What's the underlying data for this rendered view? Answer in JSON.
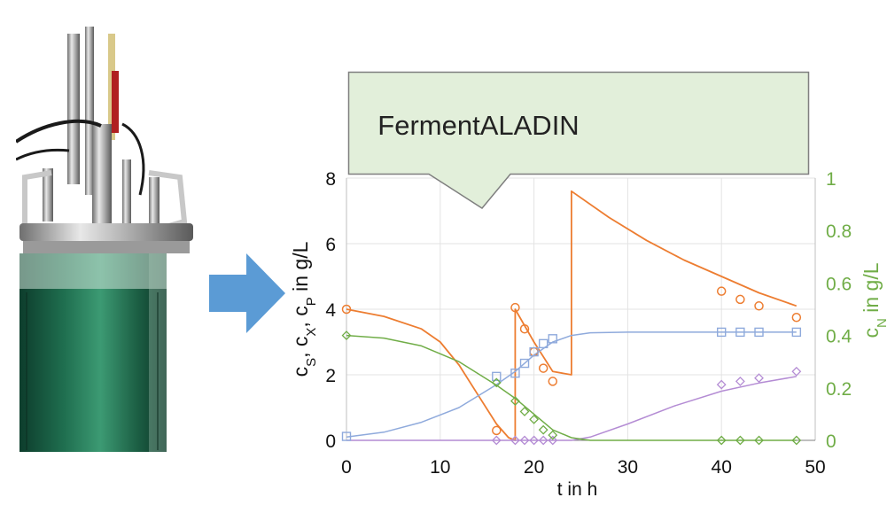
{
  "callout": {
    "title": "FermentALADIN"
  },
  "colors": {
    "substrate": "#ED7D31",
    "biomass": "#8FAADC",
    "product": "#B48CD4",
    "nitrogen": "#70AD47",
    "callout_fill": "#E2EFDA",
    "callout_border": "#7F7F7F",
    "arrow": "#5B9BD5",
    "right_axis": "#70AD47"
  },
  "chart_data": {
    "type": "line",
    "xlabel": "t in h",
    "ylabel_left": "cS, cX, cP in g/L",
    "ylabel_right": "cN in g/L",
    "xlim": [
      0,
      50
    ],
    "ylim_left": [
      0,
      8
    ],
    "ylim_right": [
      0,
      1
    ],
    "xticks": [
      0,
      10,
      20,
      30,
      40,
      50
    ],
    "yticks_left": [
      0,
      2,
      4,
      6,
      8
    ],
    "yticks_right": [
      0,
      0.2,
      0.4,
      0.6,
      0.8,
      1
    ],
    "grid": true,
    "series": [
      {
        "key": "S",
        "axis": "left",
        "marker": "circle",
        "model": [
          [
            0,
            4.0
          ],
          [
            4,
            3.78
          ],
          [
            8,
            3.4
          ],
          [
            10,
            3.0
          ],
          [
            12,
            2.3
          ],
          [
            14,
            1.4
          ],
          [
            16,
            0.5
          ],
          [
            17.3,
            0.08
          ],
          [
            18,
            0
          ],
          [
            18,
            4.0
          ],
          [
            20,
            3.0
          ],
          [
            22,
            2.1
          ],
          [
            24,
            2.0
          ],
          [
            24,
            7.6
          ],
          [
            28,
            6.8
          ],
          [
            32,
            6.1
          ],
          [
            36,
            5.5
          ],
          [
            40,
            5.0
          ],
          [
            44,
            4.5
          ],
          [
            48,
            4.1
          ]
        ],
        "observed": [
          [
            0,
            4.0
          ],
          [
            16,
            0.3
          ],
          [
            18,
            4.05
          ],
          [
            19,
            3.4
          ],
          [
            20,
            2.7
          ],
          [
            21,
            2.2
          ],
          [
            22,
            1.8
          ],
          [
            40,
            4.55
          ],
          [
            42,
            4.3
          ],
          [
            44,
            4.1
          ],
          [
            48,
            3.75
          ]
        ]
      },
      {
        "key": "X",
        "axis": "left",
        "marker": "square",
        "model": [
          [
            0,
            0.1
          ],
          [
            4,
            0.25
          ],
          [
            8,
            0.55
          ],
          [
            12,
            1.0
          ],
          [
            16,
            1.7
          ],
          [
            18,
            2.1
          ],
          [
            20,
            2.6
          ],
          [
            22,
            3.0
          ],
          [
            24,
            3.2
          ],
          [
            26,
            3.28
          ],
          [
            30,
            3.3
          ],
          [
            48,
            3.3
          ]
        ],
        "observed": [
          [
            0,
            0.12
          ],
          [
            16,
            1.95
          ],
          [
            18,
            2.05
          ],
          [
            19,
            2.35
          ],
          [
            20,
            2.7
          ],
          [
            21,
            2.95
          ],
          [
            22,
            3.1
          ],
          [
            40,
            3.3
          ],
          [
            42,
            3.3
          ],
          [
            44,
            3.3
          ],
          [
            48,
            3.3
          ]
        ]
      },
      {
        "key": "P",
        "axis": "left",
        "marker": "diamond",
        "model": [
          [
            0,
            0
          ],
          [
            18,
            0
          ],
          [
            24,
            0
          ],
          [
            26,
            0.1
          ],
          [
            30,
            0.5
          ],
          [
            35,
            1.05
          ],
          [
            40,
            1.5
          ],
          [
            44,
            1.75
          ],
          [
            48,
            1.95
          ]
        ],
        "observed": [
          [
            16,
            0
          ],
          [
            18,
            0
          ],
          [
            19,
            0
          ],
          [
            20,
            0
          ],
          [
            21,
            0
          ],
          [
            22,
            0
          ],
          [
            40,
            1.7
          ],
          [
            42,
            1.8
          ],
          [
            44,
            1.9
          ],
          [
            48,
            2.1
          ]
        ]
      },
      {
        "key": "N",
        "axis": "right",
        "marker": "diamond",
        "model": [
          [
            0,
            0.4
          ],
          [
            4,
            0.39
          ],
          [
            8,
            0.36
          ],
          [
            12,
            0.3
          ],
          [
            16,
            0.21
          ],
          [
            18,
            0.16
          ],
          [
            20,
            0.1
          ],
          [
            22,
            0.04
          ],
          [
            24,
            0.01
          ],
          [
            26,
            0
          ],
          [
            48,
            0
          ]
        ],
        "observed": [
          [
            0,
            0.4
          ],
          [
            16,
            0.22
          ],
          [
            18,
            0.15
          ],
          [
            19,
            0.11
          ],
          [
            20,
            0.08
          ],
          [
            21,
            0.04
          ],
          [
            22,
            0.02
          ],
          [
            40,
            0
          ],
          [
            42,
            0
          ],
          [
            44,
            0
          ],
          [
            48,
            0
          ]
        ]
      }
    ]
  }
}
